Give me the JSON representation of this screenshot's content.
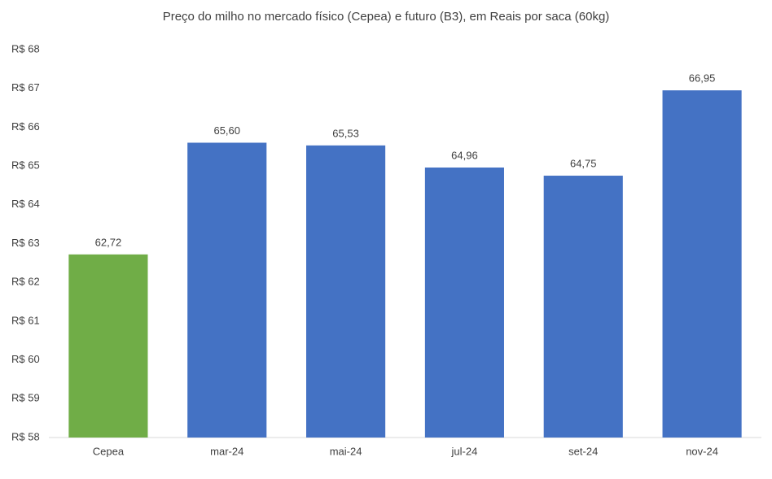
{
  "chart_data": {
    "type": "bar",
    "title": "Preço do milho no mercado físico (Cepea) e futuro (B3), em Reais por saca (60kg)",
    "categories": [
      "Cepea",
      "mar-24",
      "mai-24",
      "jul-24",
      "set-24",
      "nov-24"
    ],
    "values": [
      62.72,
      65.6,
      65.53,
      64.96,
      64.75,
      66.95
    ],
    "value_labels": [
      "62,72",
      "65,60",
      "65,53",
      "64,96",
      "64,75",
      "66,95"
    ],
    "colors": [
      "#70ad47",
      "#4472c4",
      "#4472c4",
      "#4472c4",
      "#4472c4",
      "#4472c4"
    ],
    "ylim": [
      58,
      68
    ],
    "yticks": [
      {
        "value": 58,
        "label": "R$ 58"
      },
      {
        "value": 59,
        "label": "R$ 59"
      },
      {
        "value": 60,
        "label": "R$ 60"
      },
      {
        "value": 61,
        "label": "R$ 61"
      },
      {
        "value": 62,
        "label": "R$ 62"
      },
      {
        "value": 63,
        "label": "R$ 63"
      },
      {
        "value": 64,
        "label": "R$ 64"
      },
      {
        "value": 65,
        "label": "R$ 65"
      },
      {
        "value": 66,
        "label": "R$ 66"
      },
      {
        "value": 67,
        "label": "R$ 67"
      },
      {
        "value": 68,
        "label": "R$ 68"
      }
    ],
    "grid": false
  }
}
